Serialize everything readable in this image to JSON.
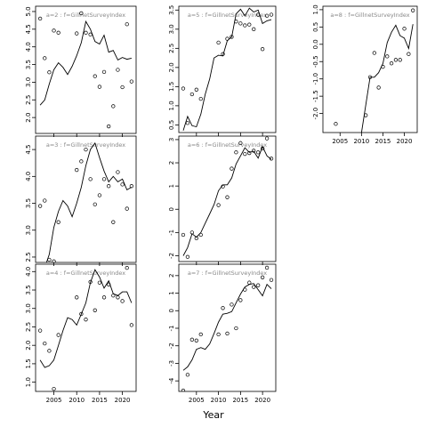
{
  "chart_data": {
    "type": "scatter",
    "xlabel": "Year",
    "x_ticks": [
      2005,
      2010,
      2015,
      2020
    ],
    "xlim": [
      2001,
      2023
    ],
    "panels": [
      {
        "title": "a=2 : f=GillnetSurveyIndex",
        "ylim": [
          1.55,
          5.15
        ],
        "y_ticks": [
          2.0,
          2.5,
          3.0,
          3.5,
          4.0,
          4.5,
          5.0
        ],
        "y_tick_labels": [
          "2.0",
          "2.5",
          "3.0",
          "3.5",
          "4.0",
          "4.5",
          "5.0"
        ],
        "x_tick_labels": [],
        "points_x": [
          2002,
          2003,
          2004,
          2005,
          2006,
          2010,
          2011,
          2012,
          2013,
          2014,
          2015,
          2016,
          2017,
          2018,
          2019,
          2020,
          2021,
          2022
        ],
        "points_y": [
          4.8,
          3.68,
          3.28,
          4.46,
          4.4,
          4.38,
          4.95,
          4.4,
          4.35,
          3.17,
          2.87,
          3.29,
          1.75,
          2.32,
          3.35,
          2.86,
          4.64,
          3.02
        ],
        "line_x": [
          2002,
          2003,
          2004,
          2005,
          2006,
          2007,
          2008,
          2009,
          2010,
          2011,
          2012,
          2013,
          2014,
          2015,
          2016,
          2017,
          2018,
          2019,
          2020,
          2021,
          2022
        ],
        "line_y": [
          2.35,
          2.5,
          2.95,
          3.35,
          3.55,
          3.42,
          3.22,
          3.45,
          3.75,
          4.12,
          4.72,
          4.5,
          4.15,
          4.08,
          4.33,
          3.85,
          3.9,
          3.63,
          3.7,
          3.65,
          3.68
        ]
      },
      {
        "title": "a=5 : f=GillnetSurveyIndex",
        "ylim": [
          0.3,
          3.6
        ],
        "y_ticks": [
          0.5,
          1.0,
          1.5,
          2.0,
          2.5,
          3.0,
          3.5
        ],
        "y_tick_labels": [
          "0.5",
          "1.0",
          "1.5",
          "2.0",
          "2.5",
          "3.0",
          "3.5"
        ],
        "x_tick_labels": [],
        "points_x": [
          2002,
          2003,
          2004,
          2005,
          2006,
          2010,
          2011,
          2012,
          2013,
          2014,
          2015,
          2016,
          2017,
          2018,
          2019,
          2020,
          2021,
          2022
        ],
        "points_y": [
          1.45,
          0.55,
          1.3,
          1.42,
          1.18,
          2.65,
          2.35,
          2.75,
          2.8,
          3.2,
          3.15,
          3.1,
          3.12,
          3.0,
          3.38,
          2.48,
          3.35,
          3.38
        ],
        "line_x": [
          2002,
          2003,
          2004,
          2005,
          2006,
          2007,
          2008,
          2009,
          2010,
          2011,
          2012,
          2013,
          2014,
          2015,
          2016,
          2017,
          2018,
          2019,
          2020,
          2021,
          2022
        ],
        "line_y": [
          0.35,
          0.72,
          0.48,
          0.45,
          0.78,
          1.3,
          1.7,
          2.25,
          2.32,
          2.3,
          2.7,
          2.8,
          3.4,
          3.52,
          3.35,
          3.55,
          3.45,
          3.5,
          3.15,
          3.22,
          3.25
        ]
      },
      {
        "title": "a=8 : f=GillnetSurveyIndex",
        "ylim": [
          -2.55,
          1.1
        ],
        "y_ticks": [
          -2.0,
          -1.5,
          -1.0,
          -0.5,
          0.0,
          0.5,
          1.0
        ],
        "y_tick_labels": [
          "-2.0",
          "-1.5",
          "-1.0",
          "-0.5",
          "0.0",
          "0.5",
          "1.0"
        ],
        "x_tick_labels": [
          "2005",
          "2010",
          "2015",
          "2020"
        ],
        "points_x": [
          2004,
          2011,
          2012,
          2013,
          2014,
          2015,
          2016,
          2017,
          2018,
          2019,
          2020,
          2021,
          2022
        ],
        "points_y": [
          -2.3,
          -2.05,
          -0.95,
          -0.25,
          -1.25,
          -0.65,
          -0.35,
          -0.55,
          -0.45,
          -0.45,
          0.45,
          -0.28,
          0.98
        ],
        "line_x": [
          2010,
          2011,
          2012,
          2013,
          2014,
          2015,
          2016,
          2017,
          2018,
          2019,
          2020,
          2021,
          2022
        ],
        "line_y": [
          -2.55,
          -1.75,
          -0.95,
          -0.95,
          -0.82,
          -0.55,
          0.05,
          0.35,
          0.55,
          0.25,
          0.18,
          -0.12,
          0.58
        ]
      },
      {
        "title": "a=3 : f=GillnetSurveyIndex",
        "ylim": [
          2.4,
          4.75
        ],
        "y_ticks": [
          2.5,
          3.0,
          3.5,
          4.0,
          4.5
        ],
        "y_tick_labels": [
          "2.5",
          "3.0",
          "3.5",
          "4.0",
          "4.5"
        ],
        "x_tick_labels": [],
        "points_x": [
          2002,
          2003,
          2004,
          2005,
          2006,
          2010,
          2011,
          2012,
          2013,
          2014,
          2015,
          2016,
          2017,
          2018,
          2019,
          2020,
          2021,
          2022
        ],
        "points_y": [
          3.45,
          3.55,
          2.45,
          2.42,
          3.15,
          4.12,
          4.28,
          4.5,
          3.95,
          3.48,
          3.65,
          3.95,
          3.82,
          3.15,
          4.08,
          3.85,
          3.4,
          3.82
        ],
        "line_x": [
          2002,
          2003,
          2004,
          2005,
          2006,
          2007,
          2008,
          2009,
          2010,
          2011,
          2012,
          2013,
          2014,
          2015,
          2016,
          2017,
          2018,
          2019,
          2020,
          2021,
          2022
        ],
        "line_y": [
          2.15,
          2.3,
          2.55,
          3.05,
          3.35,
          3.55,
          3.45,
          3.25,
          3.5,
          3.8,
          4.2,
          4.5,
          4.62,
          4.35,
          4.1,
          3.9,
          4.0,
          3.9,
          3.95,
          3.75,
          3.8
        ]
      },
      {
        "title": "a=6 : f=GillnetSurveyIndex",
        "ylim": [
          -2.25,
          3.15
        ],
        "y_ticks": [
          -2,
          -1,
          0,
          1,
          2,
          3
        ],
        "y_tick_labels": [
          "-2",
          "-1",
          "0",
          "1",
          "2",
          "3"
        ],
        "x_tick_labels": [],
        "points_x": [
          2002,
          2003,
          2004,
          2005,
          2006,
          2010,
          2011,
          2012,
          2013,
          2014,
          2015,
          2016,
          2017,
          2018,
          2019,
          2020,
          2021,
          2022
        ],
        "points_y": [
          -1.1,
          -2.05,
          -1.0,
          -1.25,
          -1.1,
          0.18,
          0.98,
          0.52,
          1.75,
          2.45,
          2.85,
          2.38,
          2.42,
          2.52,
          2.45,
          2.62,
          3.05,
          2.18
        ],
        "line_x": [
          2002,
          2003,
          2004,
          2005,
          2006,
          2007,
          2008,
          2009,
          2010,
          2011,
          2012,
          2013,
          2014,
          2015,
          2016,
          2017,
          2018,
          2019,
          2020,
          2021,
          2022
        ],
        "line_y": [
          -2.0,
          -1.65,
          -1.05,
          -1.2,
          -1.0,
          -0.6,
          -0.2,
          0.2,
          0.8,
          1.05,
          1.05,
          1.35,
          1.95,
          2.3,
          2.65,
          2.45,
          2.5,
          2.2,
          2.7,
          2.3,
          2.15
        ]
      },
      {
        "title": "a=4 : f=GillnetSurveyIndex",
        "ylim": [
          0.75,
          4.2
        ],
        "y_ticks": [
          1.0,
          1.5,
          2.0,
          2.5,
          3.0,
          3.5,
          4.0
        ],
        "y_tick_labels": [
          "1.0",
          "1.5",
          "2.0",
          "2.5",
          "3.0",
          "3.5",
          "4.0"
        ],
        "x_tick_labels": [
          "2005",
          "2010",
          "2015",
          "2020"
        ],
        "points_x": [
          2002,
          2003,
          2004,
          2005,
          2006,
          2010,
          2011,
          2012,
          2013,
          2014,
          2015,
          2016,
          2017,
          2018,
          2019,
          2020,
          2021,
          2022
        ],
        "points_y": [
          2.4,
          2.05,
          1.85,
          0.82,
          2.28,
          3.3,
          2.85,
          2.7,
          3.72,
          2.95,
          3.7,
          3.3,
          3.65,
          3.35,
          3.3,
          3.2,
          4.1,
          2.55
        ],
        "line_x": [
          2002,
          2003,
          2004,
          2005,
          2006,
          2007,
          2008,
          2009,
          2010,
          2011,
          2012,
          2013,
          2014,
          2015,
          2016,
          2017,
          2018,
          2019,
          2020,
          2021,
          2022
        ],
        "line_y": [
          1.6,
          1.4,
          1.45,
          1.6,
          2.0,
          2.4,
          2.75,
          2.7,
          2.55,
          2.85,
          3.15,
          3.7,
          4.05,
          3.85,
          3.55,
          3.75,
          3.4,
          3.35,
          3.45,
          3.45,
          3.15
        ]
      },
      {
        "title": "a=7 : f=GillnetSurveyIndex",
        "ylim": [
          -4.6,
          2.65
        ],
        "y_ticks": [
          -4,
          -3,
          -2,
          -1,
          0,
          1,
          2
        ],
        "y_tick_labels": [
          "-4",
          "-3",
          "-2",
          "-1",
          "0",
          "1",
          "2"
        ],
        "x_tick_labels": [
          "2005",
          "2010",
          "2015",
          "2020"
        ],
        "points_x": [
          2002,
          2003,
          2004,
          2005,
          2006,
          2010,
          2011,
          2012,
          2013,
          2014,
          2015,
          2016,
          2017,
          2018,
          2019,
          2020,
          2021,
          2022
        ],
        "points_y": [
          -4.55,
          -3.65,
          -1.65,
          -1.7,
          -1.35,
          -1.35,
          0.15,
          -1.3,
          0.35,
          -1.0,
          0.6,
          1.2,
          1.6,
          1.35,
          1.45,
          1.9,
          2.45,
          1.75
        ],
        "line_x": [
          2002,
          2003,
          2004,
          2005,
          2006,
          2007,
          2008,
          2009,
          2010,
          2011,
          2012,
          2013,
          2014,
          2015,
          2016,
          2017,
          2018,
          2019,
          2020,
          2021,
          2022
        ],
        "line_y": [
          -3.4,
          -3.2,
          -2.8,
          -2.2,
          -2.1,
          -2.2,
          -1.9,
          -1.3,
          -0.65,
          -0.2,
          -0.15,
          -0.05,
          0.45,
          0.95,
          1.35,
          1.5,
          1.55,
          1.2,
          0.85,
          1.5,
          1.25
        ]
      }
    ]
  }
}
